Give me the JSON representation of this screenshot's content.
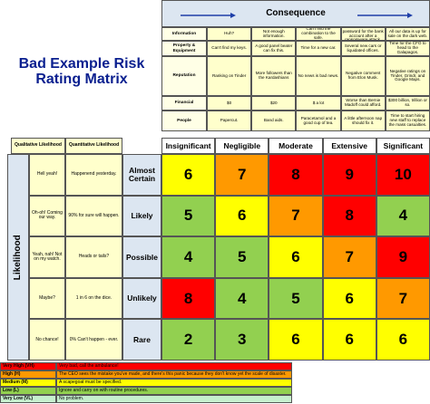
{
  "header": {
    "title": "Bad Example Risk Rating Matrix"
  },
  "consequence": {
    "title": "Consequence",
    "rows": [
      {
        "label": "Information",
        "cells": [
          "Huh?",
          "Not enough information.",
          "Can't find the combination to the safe.",
          "Can't find the password for the bank account after a ransomware attack.",
          "All our data is up for sale on the dark web."
        ]
      },
      {
        "label": "Property & Equipment",
        "cells": [
          "Can't find my keys.",
          "A good panel beater can fix this.",
          "Time for a new car.",
          "Several new cars or liquidated offices.",
          "Time for the CFO to head to the Galapagos."
        ]
      },
      {
        "label": "Reputation",
        "cells": [
          "Ranking on Tinder",
          "More followers than the Kardashians",
          "No news is bad news.",
          "Negative comment from Elon Musk.",
          "Negative ratings on Tinder, Grindr, and Google Maps."
        ]
      },
      {
        "label": "Financial",
        "cells": [
          "$0",
          "$20",
          "$ a lot",
          "Worse than Bernie Madoff could afford.",
          "$300 billion, trillion or so."
        ]
      },
      {
        "label": "People",
        "cells": [
          "Papercut.",
          "Band aids.",
          "Paracetamol and a good cup of tea.",
          "A little afternoon nap should fix it.",
          "Time to start hiring new staff to replace the mass casualties."
        ]
      }
    ]
  },
  "matrix": {
    "axis_label": "Likelihood",
    "qualitative_header": "Qualitative Likelihood",
    "quantitative_header": "Quantitative Likelihood",
    "columns": [
      "Insignificant",
      "Negligible",
      "Moderate",
      "Extensive",
      "Significant"
    ],
    "rows": [
      {
        "qualitative": "Hell yeah!",
        "quantitative": "Happenend yesterday.",
        "label": "Almost Certain",
        "cells": [
          6,
          7,
          8,
          9,
          10
        ],
        "colors": [
          "#ffff00",
          "#ff9900",
          "#ff0000",
          "#ff0000",
          "#ff0000"
        ]
      },
      {
        "qualitative": "Oh-oh! Coming our way.",
        "quantitative": "90% for sure will happen.",
        "label": "Likely",
        "cells": [
          5,
          6,
          7,
          8,
          4
        ],
        "colors": [
          "#92d050",
          "#ffff00",
          "#ff9900",
          "#ff0000",
          "#92d050"
        ]
      },
      {
        "qualitative": "Yeah, nah! Not on my watch.",
        "quantitative": "Heads or tails?",
        "label": "Possible",
        "cells": [
          4,
          5,
          6,
          7,
          9
        ],
        "colors": [
          "#92d050",
          "#92d050",
          "#ffff00",
          "#ff9900",
          "#ff0000"
        ]
      },
      {
        "qualitative": "Maybe?",
        "quantitative": "1 in 6 on the dice.",
        "label": "Unlikely",
        "cells": [
          8,
          4,
          5,
          6,
          7
        ],
        "colors": [
          "#ff0000",
          "#92d050",
          "#92d050",
          "#ffff00",
          "#ff9900"
        ]
      },
      {
        "qualitative": "No chance!",
        "quantitative": "0% Can't happen - ever.",
        "label": "Rare",
        "cells": [
          2,
          3,
          6,
          6,
          6
        ],
        "colors": [
          "#92d050",
          "#92d050",
          "#ffff00",
          "#ffff00",
          "#ffff00"
        ]
      }
    ]
  },
  "legend": [
    {
      "name": "Very High (VH)",
      "text": "Very bad, call the ambulance!",
      "color": "#ff0000"
    },
    {
      "name": "High (H)",
      "text": "The CEO sees the mistake you've made, and there's this panic because they don't know yet the scale of disaster.",
      "color": "#ff9900"
    },
    {
      "name": "Medium (M)",
      "text": "A scapegoat must be specified.",
      "color": "#ffff00"
    },
    {
      "name": "Low (L)",
      "text": "Ignore and carry on with routine procedures.",
      "color": "#92d050"
    },
    {
      "name": "Very Low (VL)",
      "text": "No problem.",
      "color": "#c6efce"
    }
  ]
}
